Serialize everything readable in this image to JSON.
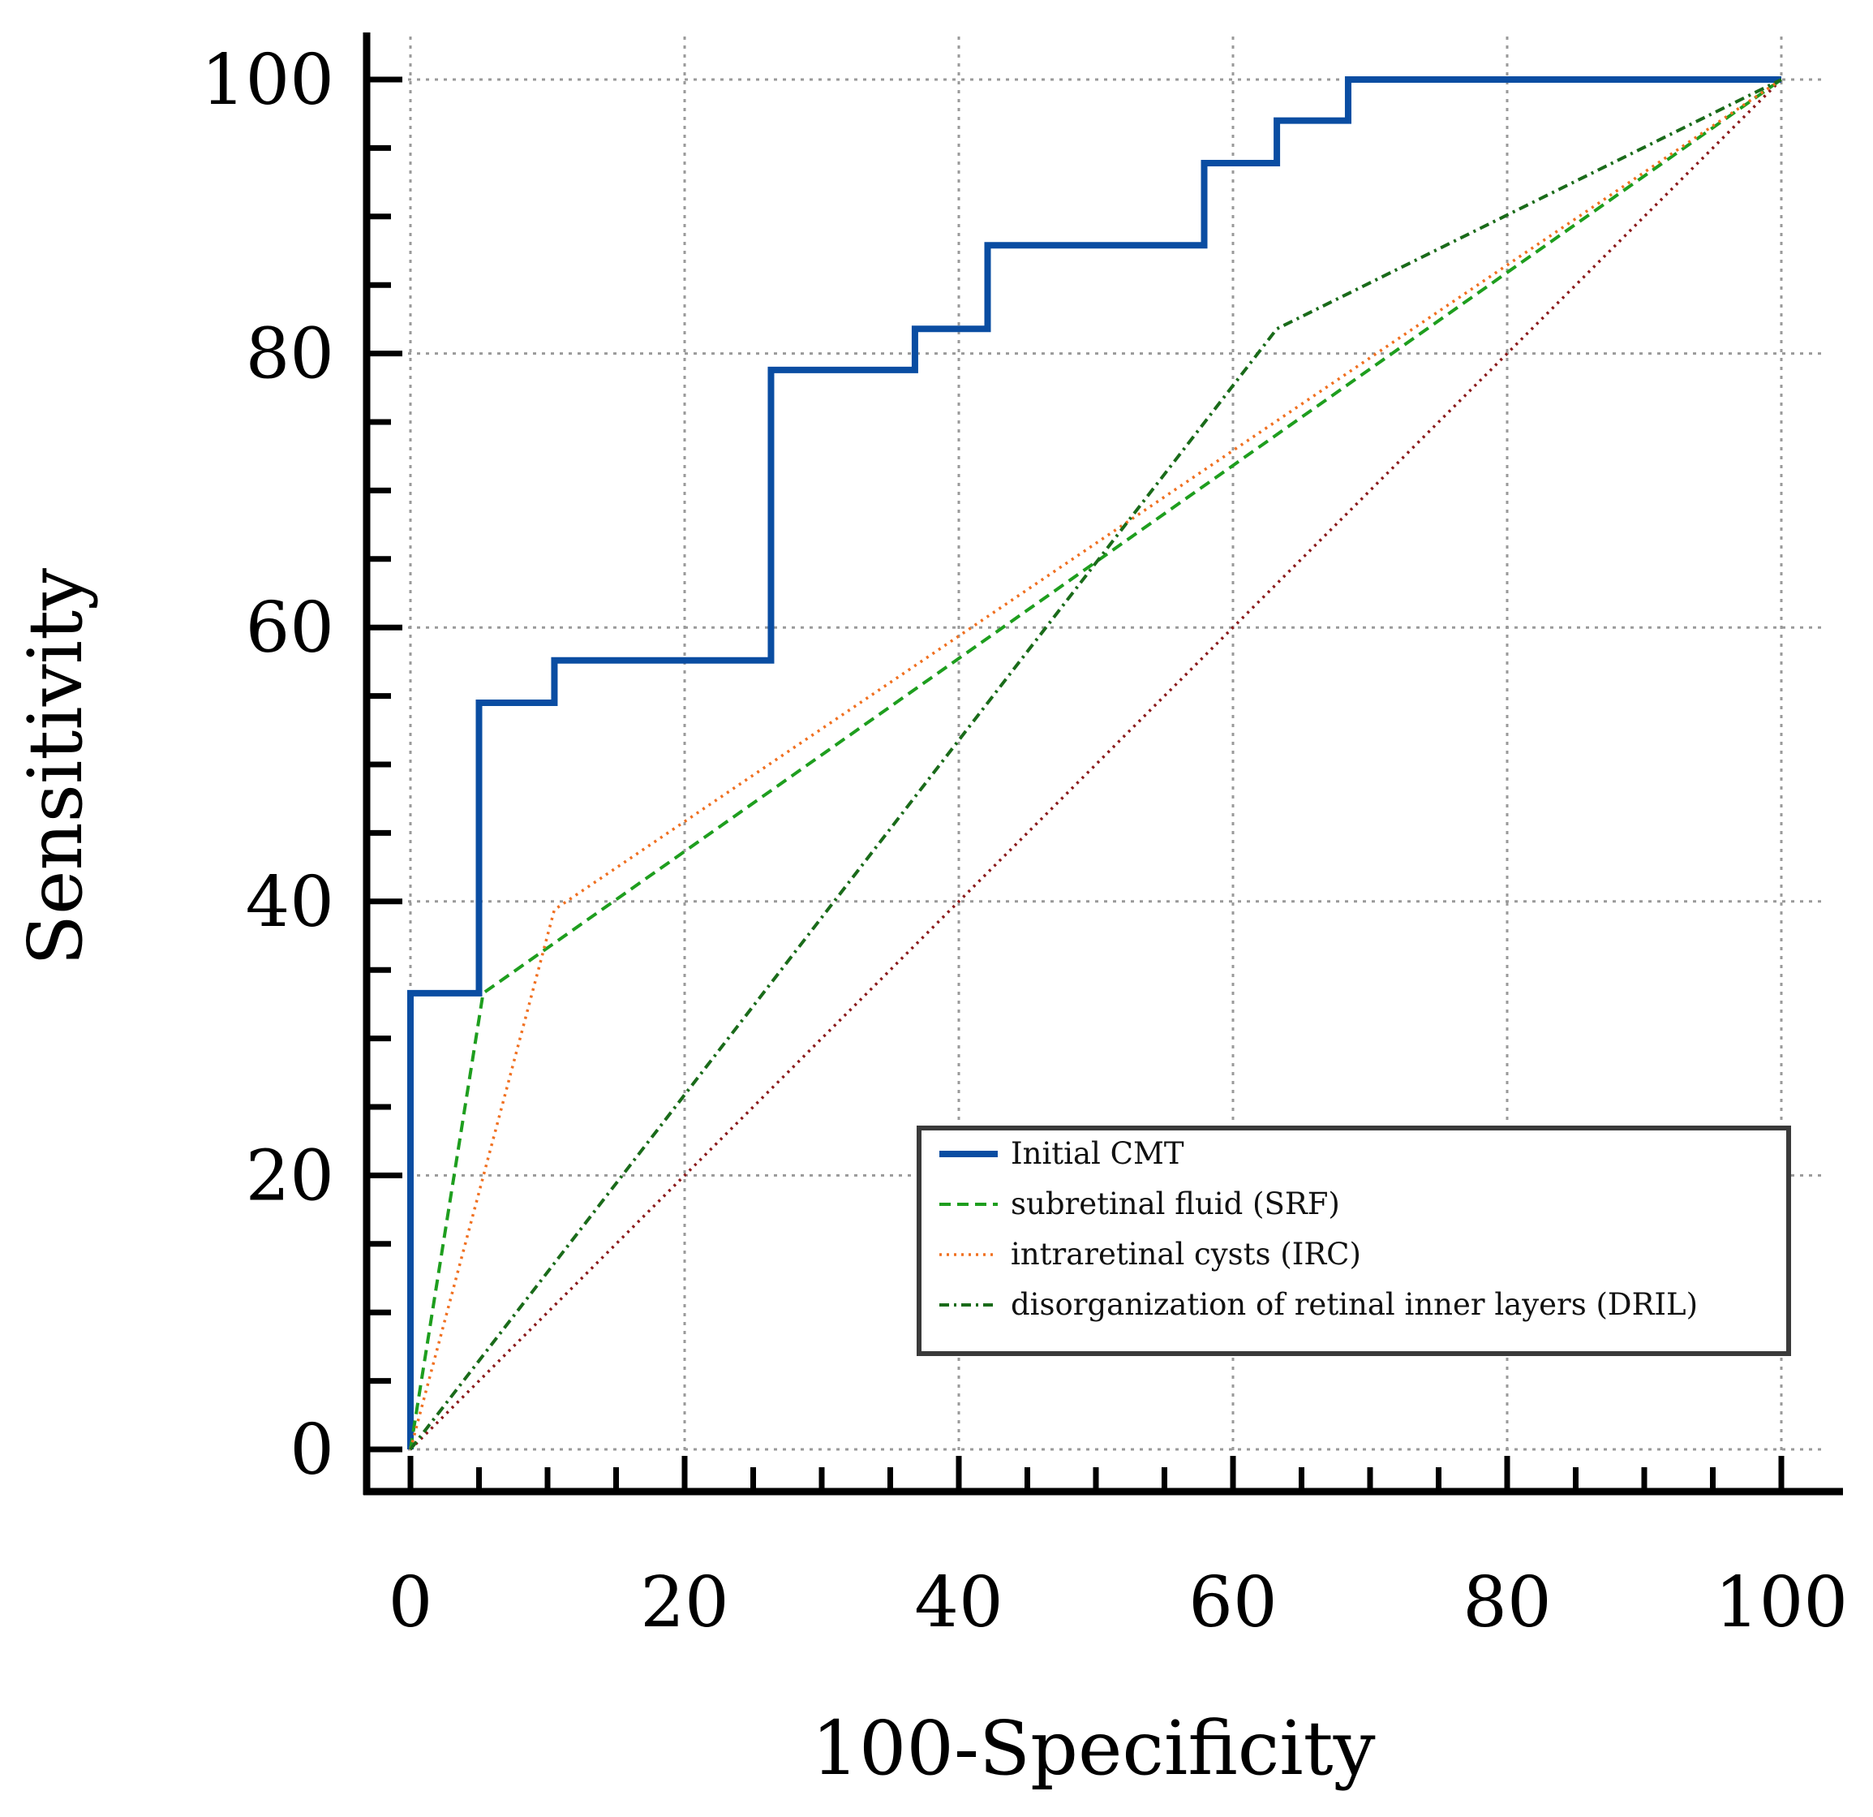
{
  "chart_data": {
    "type": "line",
    "title": "",
    "xlabel": "100-Specificity",
    "ylabel": "Sensitivity",
    "xlim": [
      0,
      100
    ],
    "ylim": [
      0,
      100
    ],
    "xticks": [
      0,
      20,
      40,
      60,
      80,
      100
    ],
    "yticks": [
      0,
      20,
      40,
      60,
      80,
      100
    ],
    "grid": true,
    "legend_position": "bottom-right",
    "series": [
      {
        "name": "Initial CMT",
        "color": "#0a4da2",
        "style": "solid",
        "x": [
          0,
          0,
          5,
          5,
          10.5,
          10.5,
          26.3,
          26.3,
          36.8,
          36.8,
          42.1,
          42.1,
          57.9,
          57.9,
          63.2,
          63.2,
          68.4,
          68.4,
          100
        ],
        "y": [
          0,
          33.3,
          33.3,
          54.5,
          54.5,
          57.6,
          57.6,
          78.8,
          78.8,
          81.8,
          81.8,
          87.9,
          87.9,
          93.9,
          93.9,
          97.0,
          97.0,
          100,
          100
        ]
      },
      {
        "name": "subretinal fluid (SRF)",
        "color": "#1e9e1e",
        "style": "dashed",
        "x": [
          0,
          5.3,
          100
        ],
        "y": [
          0,
          33.3,
          100
        ]
      },
      {
        "name": "intraretinal cysts (IRC)",
        "color": "#f07020",
        "style": "dotted",
        "x": [
          0,
          10.5,
          100
        ],
        "y": [
          0,
          39.4,
          100
        ]
      },
      {
        "name": "disorganization of retinal inner layers (DRIL)",
        "color": "#1a6b1a",
        "style": "dashdot",
        "x": [
          0,
          63.2,
          100
        ],
        "y": [
          0,
          81.8,
          100
        ]
      },
      {
        "name": "reference",
        "color": "#8b1a1a",
        "style": "dotted",
        "show_in_legend": false,
        "x": [
          0,
          100
        ],
        "y": [
          0,
          100
        ]
      }
    ]
  }
}
